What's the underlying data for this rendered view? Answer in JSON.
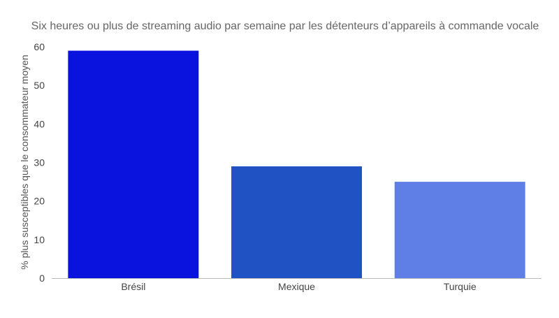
{
  "chart_data": {
    "type": "bar",
    "title": "Six heures ou plus de streaming audio par semaine par les détenteurs d’appareils à commande vocale",
    "xlabel": "",
    "ylabel": "% plus susceptibles que le consommateur moyen",
    "categories": [
      "Brésil",
      "Mexique",
      "Turquie"
    ],
    "values": [
      59,
      29,
      25
    ],
    "colors": [
      "#0a12dd",
      "#2052c4",
      "#5f7fe6"
    ],
    "ylim": [
      0,
      60
    ],
    "yticks": [
      0,
      10,
      20,
      30,
      40,
      50,
      60
    ],
    "grid": false,
    "legend": "none"
  }
}
